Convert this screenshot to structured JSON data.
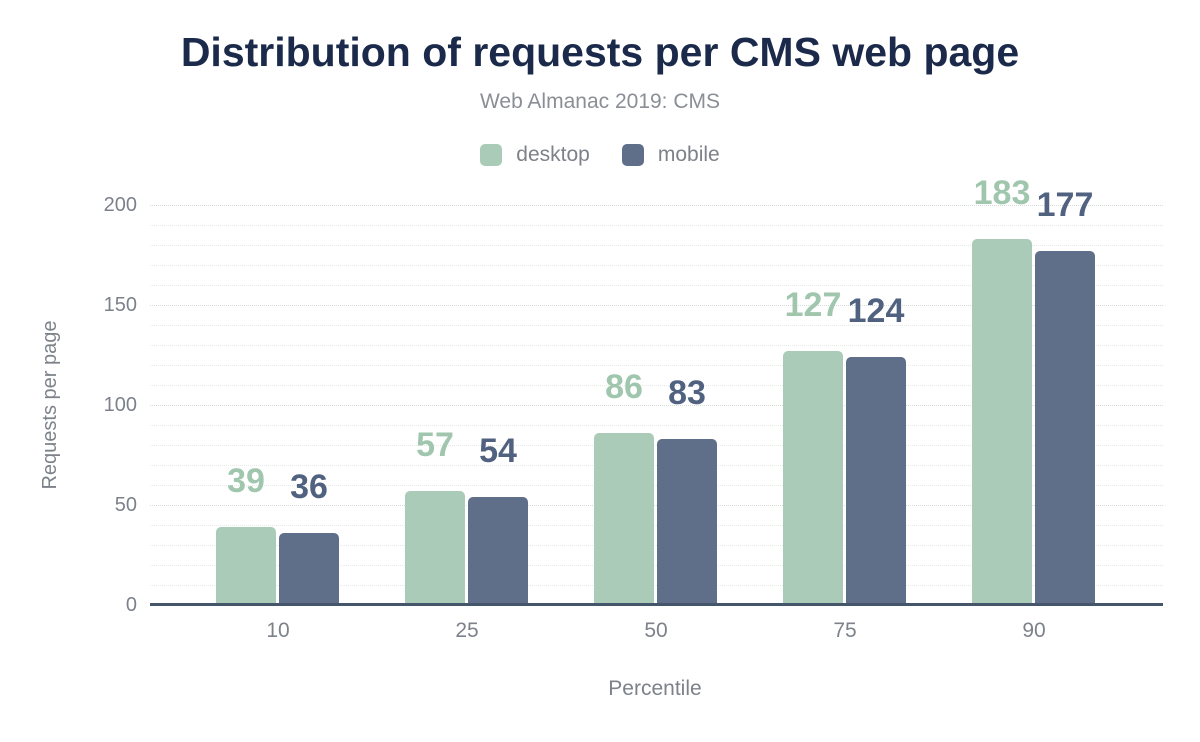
{
  "chart_data": {
    "type": "bar",
    "title": "Distribution of requests per CMS web page",
    "subtitle": "Web Almanac 2019: CMS",
    "xlabel": "Percentile",
    "ylabel": "Requests per page",
    "categories": [
      "10",
      "25",
      "50",
      "75",
      "90"
    ],
    "series": [
      {
        "name": "desktop",
        "values": [
          39,
          57,
          86,
          127,
          183
        ],
        "color": "#a9cbb7",
        "label_color": "#a0c6ae"
      },
      {
        "name": "mobile",
        "values": [
          36,
          54,
          83,
          124,
          177
        ],
        "color": "#5f6f89",
        "label_color": "#50627f"
      }
    ],
    "ylim": [
      0,
      200
    ],
    "yticks": [
      0,
      50,
      100,
      150,
      200
    ],
    "grid": "on",
    "grid_step": 10,
    "legend_position": "top"
  },
  "theme": {
    "background": "#ffffff",
    "title_color": "#1b2a4a",
    "subtitle_color": "#8a8e95",
    "axis_text_color": "#7d828a",
    "gridline_minor_color": "#e6eae7",
    "gridline_major_color": "#d5ddd8",
    "baseline_color": "#45566a"
  }
}
